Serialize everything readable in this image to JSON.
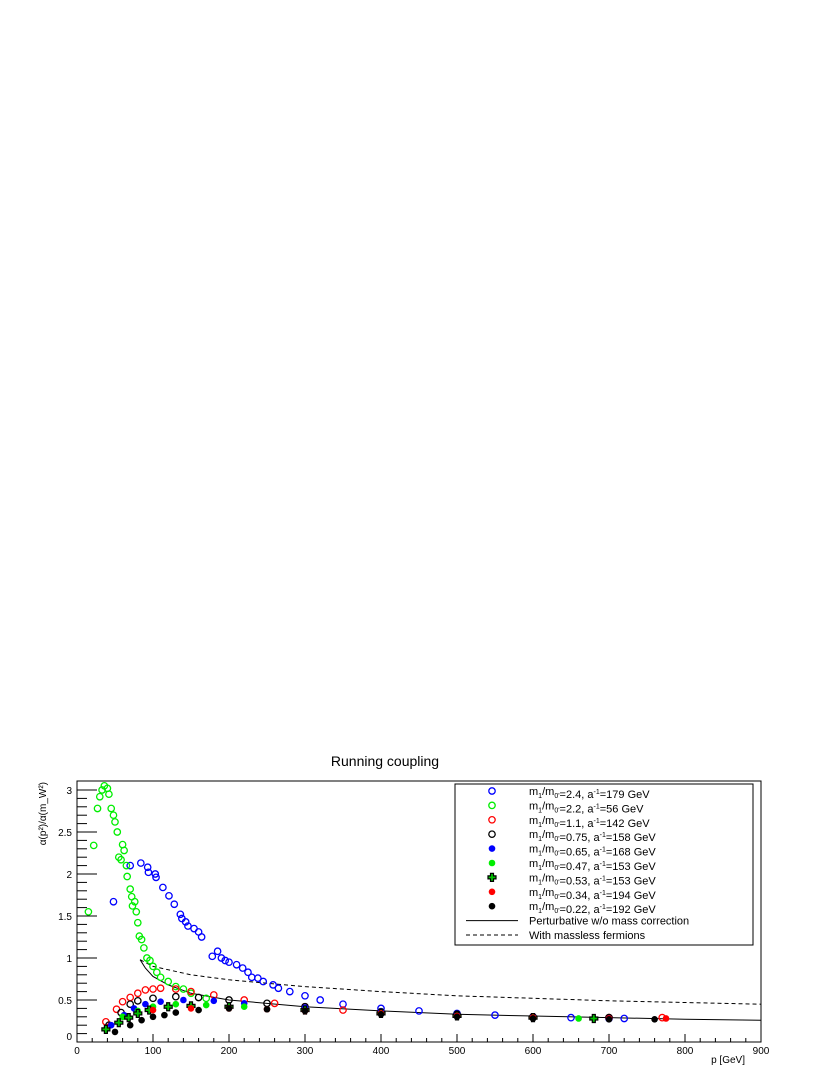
{
  "chart_data": {
    "type": "scatter",
    "title": "Running coupling",
    "xlabel": "p [GeV]",
    "ylabel": "α(p²)/α(m_W²)",
    "xlim": [
      0,
      900
    ],
    "ylim": [
      0,
      3.1
    ],
    "x_ticks": [
      0,
      100,
      200,
      300,
      400,
      500,
      600,
      700,
      800,
      900
    ],
    "y_ticks": [
      0,
      0.5,
      1,
      1.5,
      2,
      2.5,
      3
    ],
    "x_tick_labels": [
      "0",
      "100",
      "200",
      "300",
      "400",
      "500",
      "600",
      "700",
      "800",
      "900"
    ],
    "y_tick_labels": [
      "0",
      "0.5",
      "1",
      "1.5",
      "2",
      "2.5",
      "3"
    ],
    "grid": false,
    "legend_position": "top-right",
    "series": [
      {
        "name": "m1/m0'=2.4, a^-1=179 GeV",
        "label_parts": [
          "=2.4, a",
          "=179 GeV"
        ],
        "marker": "open-circle",
        "color": "#0000ff",
        "points": [
          [
            48,
            1.67
          ],
          [
            70,
            2.1
          ],
          [
            84,
            2.13
          ],
          [
            93,
            2.08
          ],
          [
            94,
            2.02
          ],
          [
            103,
            2.0
          ],
          [
            104,
            1.96
          ],
          [
            113,
            1.84
          ],
          [
            121,
            1.74
          ],
          [
            128,
            1.64
          ],
          [
            136,
            1.52
          ],
          [
            138,
            1.47
          ],
          [
            143,
            1.43
          ],
          [
            146,
            1.38
          ],
          [
            154,
            1.35
          ],
          [
            160,
            1.31
          ],
          [
            164,
            1.25
          ],
          [
            178,
            1.02
          ],
          [
            185,
            1.08
          ],
          [
            190,
            1.0
          ],
          [
            195,
            0.97
          ],
          [
            200,
            0.95
          ],
          [
            210,
            0.92
          ],
          [
            218,
            0.88
          ],
          [
            225,
            0.83
          ],
          [
            230,
            0.77
          ],
          [
            238,
            0.76
          ],
          [
            245,
            0.72
          ],
          [
            258,
            0.68
          ],
          [
            265,
            0.64
          ],
          [
            280,
            0.6
          ],
          [
            300,
            0.55
          ],
          [
            320,
            0.5
          ],
          [
            350,
            0.45
          ],
          [
            400,
            0.4
          ],
          [
            450,
            0.37
          ],
          [
            500,
            0.34
          ],
          [
            550,
            0.32
          ],
          [
            600,
            0.3
          ],
          [
            650,
            0.29
          ],
          [
            700,
            0.28
          ],
          [
            720,
            0.28
          ]
        ]
      },
      {
        "name": "m1/m0'=2.2, a^-1=56 GeV",
        "label_parts": [
          "=2.2, a",
          "=56 GeV"
        ],
        "marker": "open-circle",
        "color": "#00ee00",
        "points": [
          [
            15,
            1.55
          ],
          [
            22,
            2.34
          ],
          [
            27,
            2.78
          ],
          [
            30,
            2.92
          ],
          [
            33,
            3.0
          ],
          [
            36,
            3.05
          ],
          [
            40,
            3.02
          ],
          [
            42,
            2.95
          ],
          [
            45,
            2.78
          ],
          [
            48,
            2.7
          ],
          [
            50,
            2.62
          ],
          [
            53,
            2.5
          ],
          [
            55,
            2.2
          ],
          [
            58,
            2.17
          ],
          [
            60,
            2.35
          ],
          [
            62,
            2.28
          ],
          [
            65,
            2.1
          ],
          [
            66,
            1.97
          ],
          [
            70,
            1.82
          ],
          [
            72,
            1.73
          ],
          [
            73,
            1.62
          ],
          [
            76,
            1.67
          ],
          [
            78,
            1.55
          ],
          [
            80,
            1.42
          ],
          [
            82,
            1.26
          ],
          [
            85,
            1.22
          ],
          [
            88,
            1.12
          ],
          [
            92,
            1.0
          ],
          [
            96,
            0.97
          ],
          [
            100,
            0.9
          ],
          [
            105,
            0.83
          ],
          [
            110,
            0.77
          ],
          [
            120,
            0.72
          ],
          [
            130,
            0.66
          ],
          [
            140,
            0.63
          ],
          [
            150,
            0.58
          ],
          [
            170,
            0.52
          ]
        ]
      },
      {
        "name": "m1/m0'=1.1, a^-1=142 GeV",
        "label_parts": [
          "=1.1, a",
          "=142 GeV"
        ],
        "marker": "open-circle",
        "color": "#ff0000",
        "points": [
          [
            38,
            0.24
          ],
          [
            52,
            0.39
          ],
          [
            60,
            0.48
          ],
          [
            70,
            0.53
          ],
          [
            80,
            0.58
          ],
          [
            90,
            0.62
          ],
          [
            100,
            0.63
          ],
          [
            110,
            0.64
          ],
          [
            130,
            0.63
          ],
          [
            150,
            0.6
          ],
          [
            180,
            0.56
          ],
          [
            220,
            0.5
          ],
          [
            260,
            0.46
          ],
          [
            300,
            0.42
          ],
          [
            350,
            0.38
          ],
          [
            400,
            0.35
          ],
          [
            500,
            0.32
          ],
          [
            600,
            0.3
          ],
          [
            700,
            0.29
          ],
          [
            770,
            0.29
          ]
        ]
      },
      {
        "name": "m1/m0'=0.75, a^-1=158 GeV",
        "label_parts": [
          "=0.75, a",
          "=158 GeV"
        ],
        "marker": "open-circle",
        "color": "#000000",
        "points": [
          [
            42,
            0.2
          ],
          [
            58,
            0.35
          ],
          [
            70,
            0.45
          ],
          [
            80,
            0.49
          ],
          [
            100,
            0.52
          ],
          [
            130,
            0.54
          ],
          [
            160,
            0.53
          ],
          [
            200,
            0.5
          ],
          [
            250,
            0.46
          ],
          [
            300,
            0.42
          ],
          [
            400,
            0.36
          ],
          [
            500,
            0.33
          ],
          [
            600,
            0.3
          ],
          [
            700,
            0.29
          ]
        ]
      },
      {
        "name": "m1/m0'=0.65, a^-1=168 GeV",
        "label_parts": [
          "=0.65, a",
          "=168 GeV"
        ],
        "marker": "filled-circle",
        "color": "#0000ff",
        "points": [
          [
            45,
            0.2
          ],
          [
            62,
            0.32
          ],
          [
            75,
            0.4
          ],
          [
            90,
            0.45
          ],
          [
            110,
            0.48
          ],
          [
            140,
            0.5
          ],
          [
            180,
            0.49
          ],
          [
            220,
            0.46
          ],
          [
            300,
            0.41
          ],
          [
            400,
            0.36
          ],
          [
            500,
            0.32
          ],
          [
            600,
            0.3
          ],
          [
            700,
            0.28
          ]
        ]
      },
      {
        "name": "m1/m0'=0.47, a^-1=153 GeV",
        "label_parts": [
          "=0.47, a",
          "=153 GeV"
        ],
        "marker": "filled-circle",
        "color": "#00ee00",
        "points": [
          [
            60,
            0.3
          ],
          [
            80,
            0.37
          ],
          [
            100,
            0.42
          ],
          [
            130,
            0.45
          ],
          [
            170,
            0.44
          ],
          [
            220,
            0.42
          ],
          [
            300,
            0.38
          ],
          [
            400,
            0.34
          ],
          [
            500,
            0.31
          ],
          [
            600,
            0.29
          ],
          [
            660,
            0.28
          ]
        ]
      },
      {
        "name": "m1/m0'=0.53, a^-1=153 GeV",
        "label_parts": [
          "=0.53, a",
          "=153 GeV"
        ],
        "marker": "cross",
        "color": "#000000",
        "points": [
          [
            38,
            0.15
          ],
          [
            55,
            0.23
          ],
          [
            68,
            0.29
          ],
          [
            80,
            0.34
          ],
          [
            95,
            0.38
          ],
          [
            120,
            0.42
          ],
          [
            150,
            0.43
          ],
          [
            200,
            0.42
          ],
          [
            300,
            0.38
          ],
          [
            400,
            0.34
          ],
          [
            500,
            0.31
          ],
          [
            600,
            0.29
          ],
          [
            680,
            0.28
          ]
        ]
      },
      {
        "name": "m1/m0'=0.34, a^-1=194 GeV",
        "label_parts": [
          "=0.34, a",
          "=194 GeV"
        ],
        "marker": "filled-circle",
        "color": "#ff0000",
        "points": [
          [
            100,
            0.38
          ],
          [
            150,
            0.4
          ],
          [
            200,
            0.4
          ],
          [
            250,
            0.39
          ],
          [
            300,
            0.37
          ],
          [
            400,
            0.34
          ],
          [
            500,
            0.31
          ],
          [
            600,
            0.29
          ],
          [
            700,
            0.28
          ],
          [
            775,
            0.28
          ]
        ]
      },
      {
        "name": "m1/m0'=0.22, a^-1=192 GeV",
        "label_parts": [
          "=0.22, a",
          "=192 GeV"
        ],
        "marker": "filled-circle",
        "color": "#000000",
        "points": [
          [
            50,
            0.12
          ],
          [
            70,
            0.2
          ],
          [
            85,
            0.26
          ],
          [
            100,
            0.3
          ],
          [
            115,
            0.32
          ],
          [
            130,
            0.35
          ],
          [
            160,
            0.38
          ],
          [
            200,
            0.4
          ],
          [
            250,
            0.39
          ],
          [
            300,
            0.37
          ],
          [
            400,
            0.33
          ],
          [
            500,
            0.3
          ],
          [
            600,
            0.28
          ],
          [
            700,
            0.27
          ],
          [
            760,
            0.27
          ]
        ]
      }
    ],
    "lines": [
      {
        "name": "Perturbative w/o mass correction",
        "style": "solid",
        "color": "#000000",
        "points": [
          [
            83,
            0.98
          ],
          [
            90,
            0.88
          ],
          [
            100,
            0.78
          ],
          [
            120,
            0.68
          ],
          [
            150,
            0.58
          ],
          [
            200,
            0.5
          ],
          [
            300,
            0.42
          ],
          [
            400,
            0.37
          ],
          [
            500,
            0.33
          ],
          [
            600,
            0.31
          ],
          [
            700,
            0.29
          ],
          [
            800,
            0.27
          ],
          [
            900,
            0.26
          ]
        ]
      },
      {
        "name": "With massless fermions",
        "style": "dashed",
        "color": "#000000",
        "points": [
          [
            83,
            0.98
          ],
          [
            100,
            0.9
          ],
          [
            150,
            0.8
          ],
          [
            200,
            0.74
          ],
          [
            300,
            0.66
          ],
          [
            400,
            0.6
          ],
          [
            500,
            0.55
          ],
          [
            600,
            0.52
          ],
          [
            700,
            0.49
          ],
          [
            800,
            0.47
          ],
          [
            900,
            0.45
          ]
        ]
      }
    ]
  }
}
